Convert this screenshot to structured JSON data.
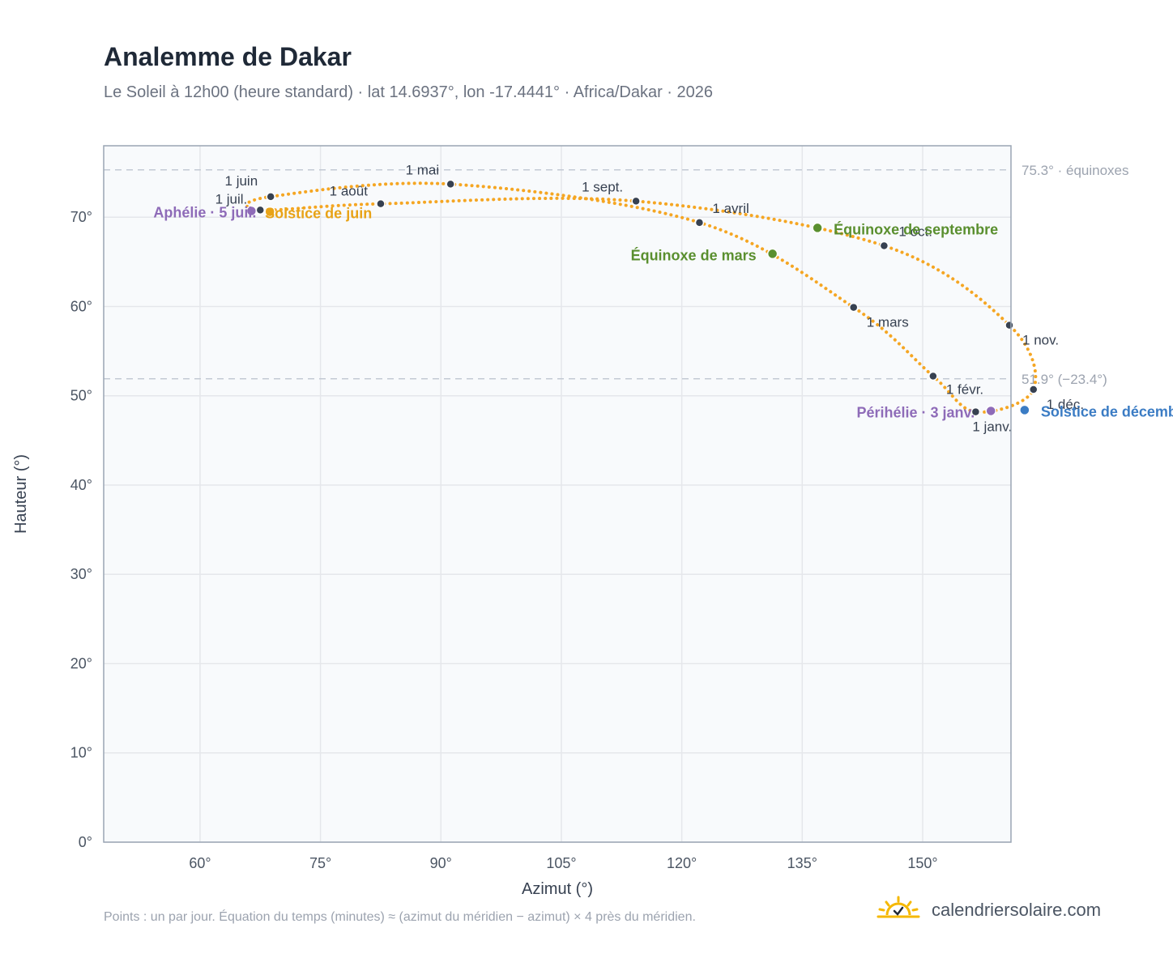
{
  "header": {
    "title": "Analemme de Dakar",
    "subtitle": "Le Soleil à 12h00 (heure standard) · lat 14.6937°, lon -17.4441° · Africa/Dakar · 2026"
  },
  "footer": {
    "footnote": "Points : un par jour. Équation du temps (minutes) ≈ (azimut du méridien − azimut) × 4 près du méridien.",
    "brand": "calendriersolaire.com"
  },
  "colors": {
    "curve": "#f5a623",
    "month_point": "#374151",
    "equinox": "#5a8f2f",
    "june_solstice": "#e8a317",
    "december_solstice": "#3b7cc4",
    "apsis": "#8e6bb8",
    "grid": "#e5e7eb",
    "reference_line": "#c3cad4",
    "plot_background": "#f8fafc",
    "frame": "#9aa5b4"
  },
  "chart_data": {
    "type": "scatter",
    "title": "Analemme de Dakar",
    "xlabel": "Azimut (°)",
    "ylabel": "Hauteur (°)",
    "xlim": [
      48,
      161
    ],
    "ylim": [
      0,
      78
    ],
    "x_ticks": [
      60,
      75,
      90,
      105,
      120,
      135,
      150
    ],
    "x_tick_labels": [
      "60°",
      "75°",
      "90°",
      "105°",
      "120°",
      "135°",
      "150°"
    ],
    "y_ticks": [
      0,
      10,
      20,
      30,
      40,
      50,
      60,
      70
    ],
    "y_tick_labels": [
      "0°",
      "10°",
      "20°",
      "30°",
      "40°",
      "50°",
      "60°",
      "70°"
    ],
    "grid": true,
    "reference_lines": [
      {
        "y": 75.3,
        "label": "75.3° · équinoxes"
      },
      {
        "y": 51.9,
        "label": "51.9° (−23.4°)"
      }
    ],
    "series": [
      {
        "points": [
          {
            "date": "1 janv.",
            "az": 156.6,
            "alt": 48.2
          },
          {
            "date": "1 févr.",
            "az": 151.3,
            "alt": 52.2
          },
          {
            "date": "1 mars",
            "az": 141.4,
            "alt": 59.9
          },
          {
            "date": "1 avril",
            "az": 122.2,
            "alt": 69.4
          },
          {
            "date": "1 mai",
            "az": 91.2,
            "alt": 73.7
          },
          {
            "date": "1 juin",
            "az": 68.8,
            "alt": 72.3
          },
          {
            "date": "1 juil.",
            "az": 67.5,
            "alt": 70.8
          },
          {
            "date": "1 août",
            "az": 82.5,
            "alt": 71.5
          },
          {
            "date": "1 sept.",
            "az": 114.3,
            "alt": 71.8
          },
          {
            "date": "1 oct.",
            "az": 145.2,
            "alt": 66.8
          },
          {
            "date": "1 nov.",
            "az": 160.8,
            "alt": 57.9
          },
          {
            "date": "1 déc.",
            "az": 163.8,
            "alt": 50.7
          }
        ]
      }
    ],
    "events": [
      {
        "label": "Équinoxe de mars",
        "az": 131.3,
        "alt": 65.9
      },
      {
        "label": "Équinoxe de septembre",
        "az": 136.9,
        "alt": 68.8
      },
      {
        "label": "Solstice de juin",
        "az": 68.7,
        "alt": 70.6
      },
      {
        "label": "Solstice de décembre",
        "az": 162.7,
        "alt": 48.4
      },
      {
        "label": "Aphélie · 5 juil.",
        "az": 66.4,
        "alt": 70.7
      },
      {
        "label": "Périhélie · 3 janv.",
        "az": 158.5,
        "alt": 48.3
      }
    ]
  }
}
